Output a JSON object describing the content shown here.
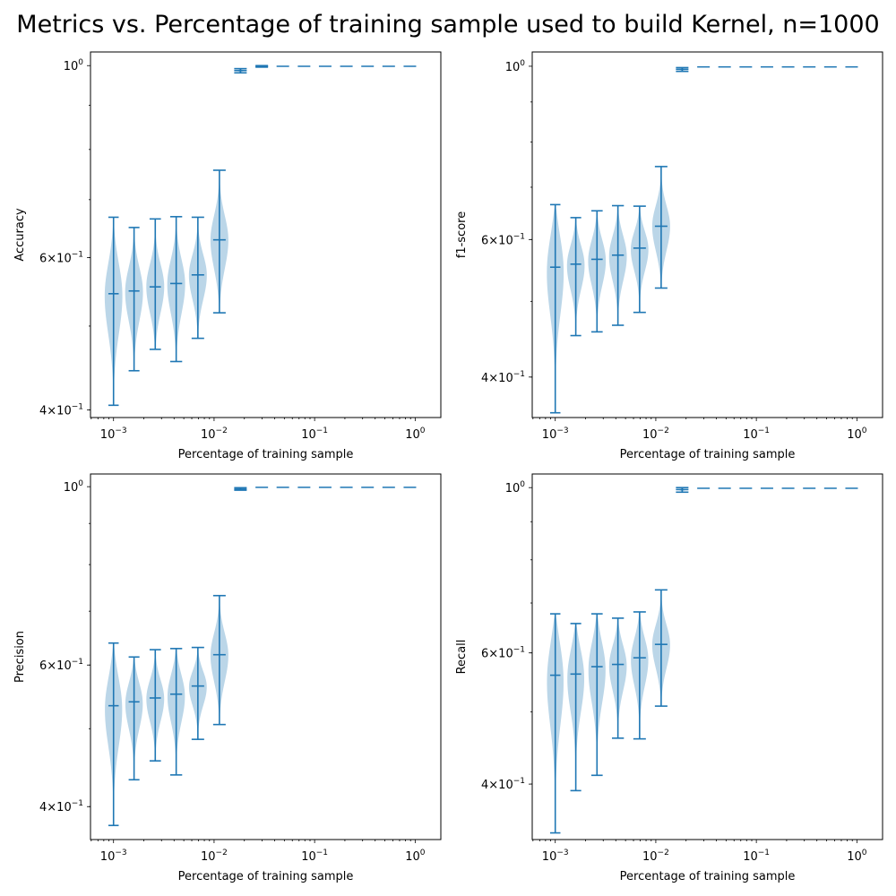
{
  "title": "Metrics vs. Percentage of training sample used to build Kernel, n=1000",
  "colors": {
    "stroke": "#1f77b4",
    "fill": "#1f77b4"
  },
  "chart_data": [
    {
      "type": "violin",
      "ylabel": "Accuracy",
      "xlabel": "Percentage of training sample",
      "xscale": "log",
      "yscale": "log",
      "xlim": [
        0.00059,
        1.8
      ],
      "ylim": [
        0.392,
        1.037
      ],
      "x_ticks": [
        {
          "v": 0.001,
          "base": "10",
          "exp": "−3"
        },
        {
          "v": 0.01,
          "base": "10",
          "exp": "−2"
        },
        {
          "v": 0.1,
          "base": "10",
          "exp": "−1"
        },
        {
          "v": 1,
          "base": "10",
          "exp": "0"
        }
      ],
      "y_ticks": [
        {
          "v": 0.4,
          "m": "4",
          "base": "10",
          "exp": "−1"
        },
        {
          "v": 0.6,
          "m": "6",
          "base": "10",
          "exp": "−1"
        },
        {
          "v": 1.0,
          "m": "",
          "base": "10",
          "exp": "0"
        }
      ],
      "violins": [
        {
          "x": 0.001,
          "min": 0.405,
          "max": 0.668,
          "mean": 0.545
        },
        {
          "x": 0.0016,
          "min": 0.444,
          "max": 0.65,
          "mean": 0.549
        },
        {
          "x": 0.0026,
          "min": 0.47,
          "max": 0.665,
          "mean": 0.555
        },
        {
          "x": 0.0042,
          "min": 0.455,
          "max": 0.669,
          "mean": 0.56
        },
        {
          "x": 0.0069,
          "min": 0.484,
          "max": 0.668,
          "mean": 0.573
        },
        {
          "x": 0.0113,
          "min": 0.518,
          "max": 0.757,
          "mean": 0.629
        },
        {
          "x": 0.0183,
          "min": 0.981,
          "max": 0.992,
          "mean": 0.987
        },
        {
          "x": 0.0298,
          "min": 0.996,
          "max": 1.0,
          "mean": 0.998
        },
        {
          "x": 0.0483,
          "min": 0.999,
          "max": 1.0,
          "mean": 1.0
        },
        {
          "x": 0.0785,
          "min": 1.0,
          "max": 1.0,
          "mean": 1.0
        },
        {
          "x": 0.1274,
          "min": 1.0,
          "max": 1.0,
          "mean": 1.0
        },
        {
          "x": 0.2069,
          "min": 1.0,
          "max": 1.0,
          "mean": 1.0
        },
        {
          "x": 0.336,
          "min": 1.0,
          "max": 1.0,
          "mean": 1.0
        },
        {
          "x": 0.5456,
          "min": 1.0,
          "max": 1.0,
          "mean": 1.0
        },
        {
          "x": 0.886,
          "min": 1.0,
          "max": 1.0,
          "mean": 1.0
        }
      ]
    },
    {
      "type": "violin",
      "ylabel": "f1-score",
      "xlabel": "Percentage of training sample",
      "xscale": "log",
      "yscale": "log",
      "xlim": [
        0.00059,
        1.8
      ],
      "ylim": [
        0.355,
        1.043
      ],
      "x_ticks": [
        {
          "v": 0.001,
          "base": "10",
          "exp": "−3"
        },
        {
          "v": 0.01,
          "base": "10",
          "exp": "−2"
        },
        {
          "v": 0.1,
          "base": "10",
          "exp": "−1"
        },
        {
          "v": 1,
          "base": "10",
          "exp": "0"
        }
      ],
      "y_ticks": [
        {
          "v": 0.4,
          "m": "4",
          "base": "10",
          "exp": "−1"
        },
        {
          "v": 0.6,
          "m": "6",
          "base": "10",
          "exp": "−1"
        },
        {
          "v": 1.0,
          "m": "",
          "base": "10",
          "exp": "0"
        }
      ],
      "violins": [
        {
          "x": 0.001,
          "min": 0.36,
          "max": 0.665,
          "mean": 0.553
        },
        {
          "x": 0.0016,
          "min": 0.452,
          "max": 0.64,
          "mean": 0.558
        },
        {
          "x": 0.0026,
          "min": 0.457,
          "max": 0.653,
          "mean": 0.566
        },
        {
          "x": 0.0042,
          "min": 0.466,
          "max": 0.663,
          "mean": 0.573
        },
        {
          "x": 0.0069,
          "min": 0.484,
          "max": 0.662,
          "mean": 0.585
        },
        {
          "x": 0.0113,
          "min": 0.52,
          "max": 0.744,
          "mean": 0.624
        },
        {
          "x": 0.0183,
          "min": 0.985,
          "max": 0.996,
          "mean": 0.991
        },
        {
          "x": 0.0298,
          "min": 0.997,
          "max": 1.0,
          "mean": 0.999
        },
        {
          "x": 0.0483,
          "min": 0.999,
          "max": 1.0,
          "mean": 1.0
        },
        {
          "x": 0.0785,
          "min": 1.0,
          "max": 1.0,
          "mean": 1.0
        },
        {
          "x": 0.1274,
          "min": 1.0,
          "max": 1.0,
          "mean": 1.0
        },
        {
          "x": 0.2069,
          "min": 1.0,
          "max": 1.0,
          "mean": 1.0
        },
        {
          "x": 0.336,
          "min": 1.0,
          "max": 1.0,
          "mean": 1.0
        },
        {
          "x": 0.5456,
          "min": 1.0,
          "max": 1.0,
          "mean": 1.0
        },
        {
          "x": 0.886,
          "min": 1.0,
          "max": 1.0,
          "mean": 1.0
        }
      ]
    },
    {
      "type": "violin",
      "ylabel": "Precision",
      "xlabel": "Percentage of training sample",
      "xscale": "log",
      "yscale": "log",
      "xlim": [
        0.00059,
        1.8
      ],
      "ylim": [
        0.364,
        1.037
      ],
      "x_ticks": [
        {
          "v": 0.001,
          "base": "10",
          "exp": "−3"
        },
        {
          "v": 0.01,
          "base": "10",
          "exp": "−2"
        },
        {
          "v": 0.1,
          "base": "10",
          "exp": "−1"
        },
        {
          "v": 1,
          "base": "10",
          "exp": "0"
        }
      ],
      "y_ticks": [
        {
          "v": 0.4,
          "m": "4",
          "base": "10",
          "exp": "−1"
        },
        {
          "v": 0.6,
          "m": "6",
          "base": "10",
          "exp": "−1"
        },
        {
          "v": 1.0,
          "m": "",
          "base": "10",
          "exp": "0"
        }
      ],
      "violins": [
        {
          "x": 0.001,
          "min": 0.379,
          "max": 0.639,
          "mean": 0.534
        },
        {
          "x": 0.0016,
          "min": 0.432,
          "max": 0.614,
          "mean": 0.54
        },
        {
          "x": 0.0026,
          "min": 0.456,
          "max": 0.627,
          "mean": 0.546
        },
        {
          "x": 0.0042,
          "min": 0.438,
          "max": 0.629,
          "mean": 0.552
        },
        {
          "x": 0.0069,
          "min": 0.485,
          "max": 0.631,
          "mean": 0.565
        },
        {
          "x": 0.0113,
          "min": 0.506,
          "max": 0.732,
          "mean": 0.618
        },
        {
          "x": 0.0183,
          "min": 0.99,
          "max": 0.997,
          "mean": 0.993
        },
        {
          "x": 0.0298,
          "min": 0.998,
          "max": 1.0,
          "mean": 0.999
        },
        {
          "x": 0.0483,
          "min": 0.999,
          "max": 1.0,
          "mean": 1.0
        },
        {
          "x": 0.0785,
          "min": 1.0,
          "max": 1.0,
          "mean": 1.0
        },
        {
          "x": 0.1274,
          "min": 1.0,
          "max": 1.0,
          "mean": 1.0
        },
        {
          "x": 0.2069,
          "min": 1.0,
          "max": 1.0,
          "mean": 1.0
        },
        {
          "x": 0.336,
          "min": 1.0,
          "max": 1.0,
          "mean": 1.0
        },
        {
          "x": 0.5456,
          "min": 1.0,
          "max": 1.0,
          "mean": 1.0
        },
        {
          "x": 0.886,
          "min": 1.0,
          "max": 1.0,
          "mean": 1.0
        }
      ]
    },
    {
      "type": "violin",
      "ylabel": "Recall",
      "xlabel": "Percentage of training sample",
      "xscale": "log",
      "yscale": "log",
      "xlim": [
        0.00059,
        1.8
      ],
      "ylim": [
        0.337,
        1.043
      ],
      "x_ticks": [
        {
          "v": 0.001,
          "base": "10",
          "exp": "−3"
        },
        {
          "v": 0.01,
          "base": "10",
          "exp": "−2"
        },
        {
          "v": 0.1,
          "base": "10",
          "exp": "−1"
        },
        {
          "v": 1,
          "base": "10",
          "exp": "0"
        }
      ],
      "y_ticks": [
        {
          "v": 0.4,
          "m": "4",
          "base": "10",
          "exp": "−1"
        },
        {
          "v": 0.6,
          "m": "6",
          "base": "10",
          "exp": "−1"
        },
        {
          "v": 1.0,
          "m": "",
          "base": "10",
          "exp": "0"
        }
      ],
      "violins": [
        {
          "x": 0.001,
          "min": 0.344,
          "max": 0.677,
          "mean": 0.56
        },
        {
          "x": 0.0016,
          "min": 0.392,
          "max": 0.657,
          "mean": 0.562
        },
        {
          "x": 0.0026,
          "min": 0.411,
          "max": 0.677,
          "mean": 0.575
        },
        {
          "x": 0.0042,
          "min": 0.461,
          "max": 0.668,
          "mean": 0.579
        },
        {
          "x": 0.0069,
          "min": 0.46,
          "max": 0.681,
          "mean": 0.591
        },
        {
          "x": 0.0113,
          "min": 0.509,
          "max": 0.729,
          "mean": 0.616
        },
        {
          "x": 0.0183,
          "min": 0.986,
          "max": 1.0,
          "mean": 0.994
        },
        {
          "x": 0.0298,
          "min": 0.996,
          "max": 1.0,
          "mean": 0.998
        },
        {
          "x": 0.0483,
          "min": 0.999,
          "max": 1.0,
          "mean": 1.0
        },
        {
          "x": 0.0785,
          "min": 1.0,
          "max": 1.0,
          "mean": 1.0
        },
        {
          "x": 0.1274,
          "min": 1.0,
          "max": 1.0,
          "mean": 1.0
        },
        {
          "x": 0.2069,
          "min": 1.0,
          "max": 1.0,
          "mean": 1.0
        },
        {
          "x": 0.336,
          "min": 1.0,
          "max": 1.0,
          "mean": 1.0
        },
        {
          "x": 0.5456,
          "min": 1.0,
          "max": 1.0,
          "mean": 1.0
        },
        {
          "x": 0.886,
          "min": 1.0,
          "max": 1.0,
          "mean": 1.0
        }
      ]
    }
  ]
}
